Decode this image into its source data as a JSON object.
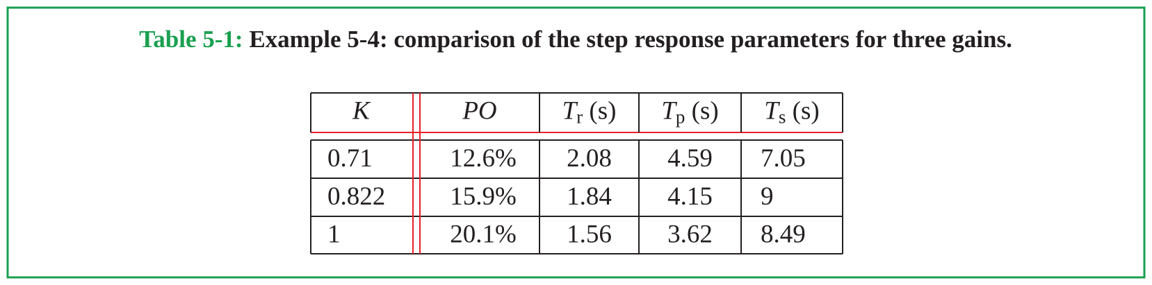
{
  "caption": {
    "label": "Table 5-1:",
    "text": "Example 5-4: comparison of the step response parameters for three gains."
  },
  "table": {
    "header": [
      {
        "symbol": "K"
      },
      {
        "symbol": "PO"
      },
      {
        "symbol": "T",
        "sub": "r",
        "unit": " (s)"
      },
      {
        "symbol": "T",
        "sub": "p",
        "unit": " (s)"
      },
      {
        "symbol": "T",
        "sub": "s",
        "unit": " (s)"
      }
    ],
    "rows": [
      [
        "0.71",
        "12.6%",
        "2.08",
        "4.59",
        "7.05"
      ],
      [
        "0.822",
        "15.9%",
        "1.84",
        "4.15",
        "9"
      ],
      [
        "1",
        "20.1%",
        "1.56",
        "3.62",
        "8.49"
      ]
    ]
  }
}
